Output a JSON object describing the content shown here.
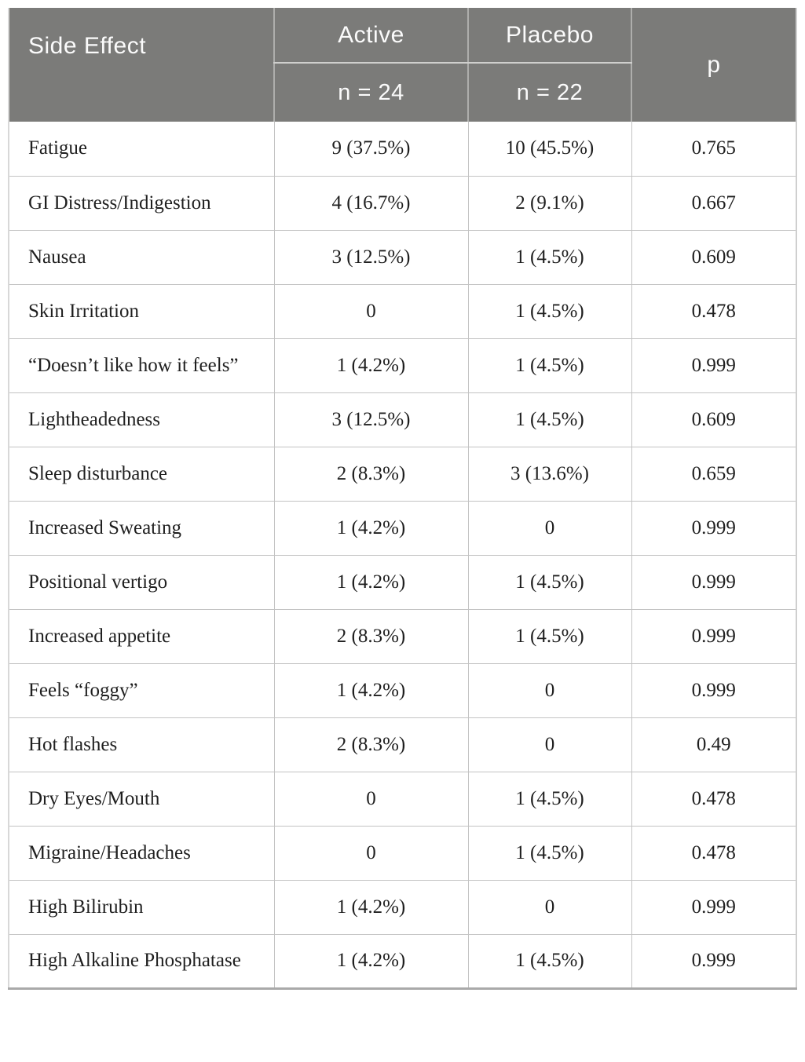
{
  "table": {
    "columns": {
      "side_effect": "Side Effect",
      "active": "Active",
      "active_n": "n = 24",
      "placebo": "Placebo",
      "placebo_n": "n = 22",
      "p": "p"
    },
    "rows": [
      {
        "side_effect": "Fatigue",
        "active": "9 (37.5%)",
        "placebo": "10 (45.5%)",
        "p": "0.765"
      },
      {
        "side_effect": "GI Distress/Indigestion",
        "active": "4 (16.7%)",
        "placebo": "2 (9.1%)",
        "p": "0.667"
      },
      {
        "side_effect": "Nausea",
        "active": "3 (12.5%)",
        "placebo": "1 (4.5%)",
        "p": "0.609"
      },
      {
        "side_effect": "Skin Irritation",
        "active": "0",
        "placebo": "1 (4.5%)",
        "p": "0.478"
      },
      {
        "side_effect": "“Doesn’t like how it feels”",
        "active": "1 (4.2%)",
        "placebo": "1 (4.5%)",
        "p": "0.999"
      },
      {
        "side_effect": "Lightheadedness",
        "active": "3 (12.5%)",
        "placebo": "1 (4.5%)",
        "p": "0.609"
      },
      {
        "side_effect": "Sleep disturbance",
        "active": "2 (8.3%)",
        "placebo": "3 (13.6%)",
        "p": "0.659"
      },
      {
        "side_effect": "Increased Sweating",
        "active": "1 (4.2%)",
        "placebo": "0",
        "p": "0.999"
      },
      {
        "side_effect": "Positional vertigo",
        "active": "1 (4.2%)",
        "placebo": "1 (4.5%)",
        "p": "0.999"
      },
      {
        "side_effect": "Increased appetite",
        "active": "2 (8.3%)",
        "placebo": "1 (4.5%)",
        "p": "0.999"
      },
      {
        "side_effect": "Feels “foggy”",
        "active": "1 (4.2%)",
        "placebo": "0",
        "p": "0.999"
      },
      {
        "side_effect": "Hot flashes",
        "active": "2 (8.3%)",
        "placebo": "0",
        "p": "0.49"
      },
      {
        "side_effect": "Dry Eyes/Mouth",
        "active": "0",
        "placebo": "1 (4.5%)",
        "p": "0.478"
      },
      {
        "side_effect": "Migraine/Headaches",
        "active": "0",
        "placebo": "1 (4.5%)",
        "p": "0.478"
      },
      {
        "side_effect": "High Bilirubin",
        "active": "1 (4.2%)",
        "placebo": "0",
        "p": "0.999"
      },
      {
        "side_effect": "High Alkaline Phosphatase",
        "active": "1 (4.2%)",
        "placebo": "1 (4.5%)",
        "p": "0.999"
      }
    ]
  },
  "colors": {
    "header_bg": "#7b7b79",
    "header_text": "#fbfbfb",
    "header_divider": "#aeaeac",
    "header_subdivider": "#cfcfcd",
    "body_border": "#c3c3c3",
    "outer_border_bottom": "#a9a9a9",
    "body_text": "#1f1f1f",
    "page_bg": "#ffffff"
  }
}
